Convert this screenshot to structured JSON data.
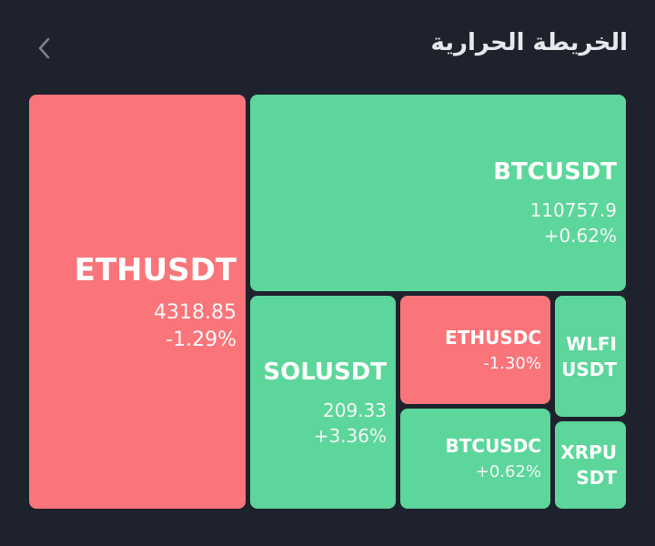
{
  "header": {
    "title": "الخريطة الحرارية",
    "chevron_icon": "chevron-left-icon"
  },
  "colors": {
    "background": "#1e222d",
    "up": "#5cd69a",
    "down": "#f9757a"
  },
  "tiles": {
    "ethusdt": {
      "symbol": "ETHUSDT",
      "price": "4318.85",
      "change": "-1.29%"
    },
    "btcusdt": {
      "symbol": "BTCUSDT",
      "price": "110757.9",
      "change": "+0.62%"
    },
    "solusdt": {
      "symbol": "SOLUSDT",
      "price": "209.33",
      "change": "+3.36%"
    },
    "ethusdc": {
      "symbol": "ETHUSDC",
      "change": "-1.30%"
    },
    "btcusdc": {
      "symbol": "BTCUSDC",
      "change": "+0.62%"
    },
    "wlfiusdt": {
      "symbol_line1": "WLFI",
      "symbol_line2": "USDT"
    },
    "xrpusdt": {
      "symbol_line1": "XRPU",
      "symbol_line2": "SDT"
    }
  }
}
